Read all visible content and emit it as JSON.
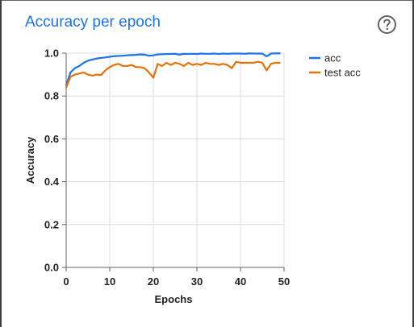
{
  "card": {
    "title": "Accuracy per epoch",
    "help_icon": "help-circle-icon"
  },
  "chart_data": {
    "type": "line",
    "title": "Accuracy per epoch",
    "xlabel": "Epochs",
    "ylabel": "Accuracy",
    "xlim": [
      0,
      50
    ],
    "ylim": [
      0.0,
      1.0
    ],
    "xticks": [
      "0",
      "10",
      "20",
      "30",
      "40",
      "50"
    ],
    "yticks": [
      "0.0",
      "0.2",
      "0.4",
      "0.6",
      "0.8",
      "1.0"
    ],
    "grid": true,
    "legend_position": "right",
    "x": [
      0,
      1,
      2,
      3,
      4,
      5,
      6,
      7,
      8,
      9,
      10,
      11,
      12,
      13,
      14,
      15,
      16,
      17,
      18,
      19,
      20,
      21,
      22,
      23,
      24,
      25,
      26,
      27,
      28,
      29,
      30,
      31,
      32,
      33,
      34,
      35,
      36,
      37,
      38,
      39,
      40,
      41,
      42,
      43,
      44,
      45,
      46,
      47,
      48,
      49
    ],
    "series": [
      {
        "name": "acc",
        "color": "#1a73e8",
        "values": [
          0.85,
          0.91,
          0.93,
          0.94,
          0.955,
          0.965,
          0.97,
          0.975,
          0.978,
          0.98,
          0.983,
          0.986,
          0.987,
          0.988,
          0.99,
          0.991,
          0.992,
          0.994,
          0.993,
          0.988,
          0.99,
          0.994,
          0.995,
          0.996,
          0.996,
          0.997,
          0.993,
          0.997,
          0.996,
          0.997,
          0.996,
          0.998,
          0.997,
          0.997,
          0.998,
          0.996,
          0.998,
          0.997,
          0.998,
          0.998,
          0.998,
          0.997,
          0.999,
          0.998,
          0.998,
          0.998,
          0.985,
          0.998,
          0.999,
          0.999
        ]
      },
      {
        "name": "test acc",
        "color": "#e8710a",
        "values": [
          0.84,
          0.89,
          0.9,
          0.905,
          0.91,
          0.9,
          0.895,
          0.9,
          0.898,
          0.92,
          0.935,
          0.945,
          0.95,
          0.94,
          0.94,
          0.945,
          0.935,
          0.935,
          0.93,
          0.91,
          0.885,
          0.95,
          0.94,
          0.955,
          0.945,
          0.955,
          0.95,
          0.94,
          0.955,
          0.945,
          0.95,
          0.945,
          0.955,
          0.95,
          0.95,
          0.945,
          0.95,
          0.945,
          0.93,
          0.96,
          0.955,
          0.955,
          0.955,
          0.955,
          0.96,
          0.955,
          0.92,
          0.95,
          0.955,
          0.955
        ]
      }
    ]
  }
}
